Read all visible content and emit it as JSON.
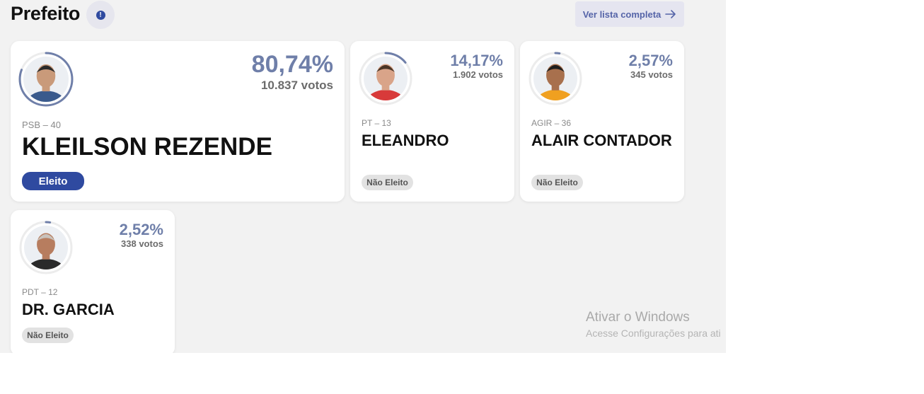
{
  "section": {
    "title": "Prefeito",
    "info_icon": "info-icon",
    "info_symbol": "!",
    "list_button_label": "Ver lista completa",
    "list_button_icon": "arrow-right-icon"
  },
  "colors": {
    "accent": "#2f4aa0",
    "percent_text": "#6f7fa9",
    "ring": "#6f7fa9",
    "elected_badge": "#2f4aa0",
    "not_elected_badge": "#e2e2e2"
  },
  "candidates": [
    {
      "party": "PSB – 40",
      "name": "KLEILSON REZENDE",
      "percent": "80,74%",
      "percent_value": 80.74,
      "votes": "10.837 votos",
      "status": "Eleito",
      "elected": true,
      "avatar": "candidate-photo"
    },
    {
      "party": "PT – 13",
      "name": "ELEANDRO",
      "percent": "14,17%",
      "percent_value": 14.17,
      "votes": "1.902 votos",
      "status": "Não Eleito",
      "elected": false,
      "avatar": "candidate-photo"
    },
    {
      "party": "AGIR – 36",
      "name": "ALAIR CONTADOR",
      "percent": "2,57%",
      "percent_value": 2.57,
      "votes": "345 votos",
      "status": "Não Eleito",
      "elected": false,
      "avatar": "candidate-photo"
    },
    {
      "party": "PDT – 12",
      "name": "DR. GARCIA",
      "percent": "2,52%",
      "percent_value": 2.52,
      "votes": "338 votos",
      "status": "Não Eleito",
      "elected": false,
      "avatar": "candidate-photo"
    }
  ],
  "watermark": {
    "title": "Ativar o Windows",
    "subtitle": "Acesse Configurações para ati"
  }
}
